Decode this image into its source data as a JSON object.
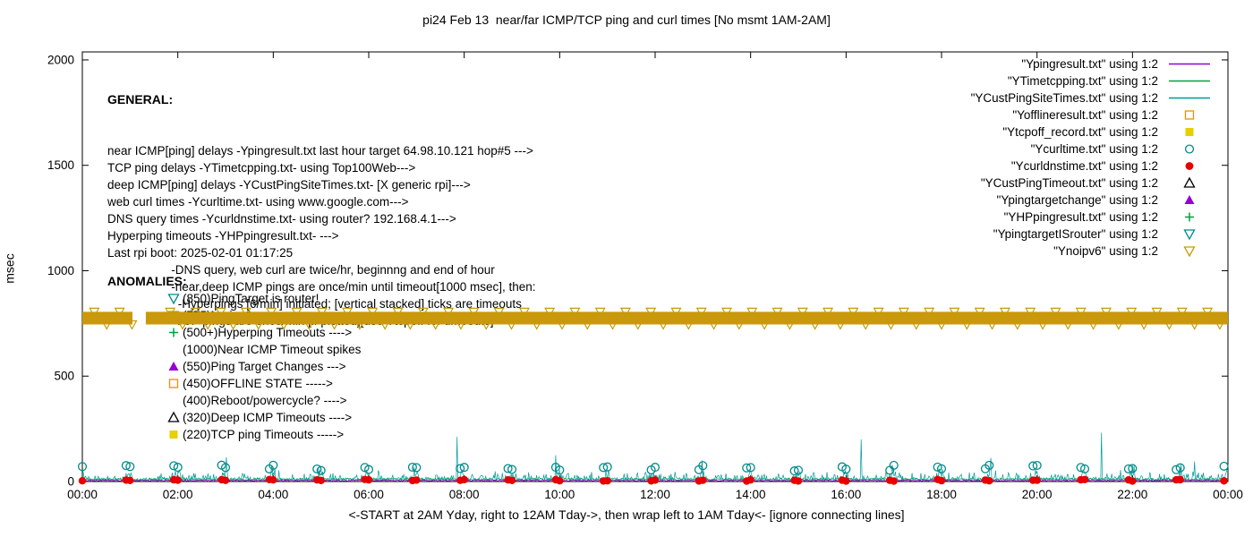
{
  "title": "pi24 Feb 13  near/far ICMP/TCP ping and curl times [No msmt 1AM-2AM]",
  "axes": {
    "ylabel": "msec",
    "xlabel": "<-START at 2AM Yday, right to 12AM Tday->, then wrap left to 1AM Tday<- [ignore connecting lines]",
    "yticks": [
      0,
      500,
      1000,
      1500,
      2000
    ],
    "xticks": [
      "00:00",
      "02:00",
      "04:00",
      "06:00",
      "08:00",
      "10:00",
      "12:00",
      "14:00",
      "16:00",
      "18:00",
      "20:00",
      "22:00",
      "00:00"
    ],
    "ylim": [
      0,
      2000
    ],
    "xlim_hours": [
      0,
      24
    ],
    "grid": false
  },
  "legend": [
    {
      "label": "\"Ypingresult.txt\" using 1:2",
      "marker": "line",
      "color": "#9400d3"
    },
    {
      "label": "\"YTimetcpping.txt\" using 1:2",
      "marker": "line",
      "color": "#00a040"
    },
    {
      "label": "\"YCustPingSiteTimes.txt\" using 1:2",
      "marker": "line",
      "color": "#009a9a"
    },
    {
      "label": "\"Yofflineresult.txt\" using 1:2",
      "marker": "square-open",
      "color": "#ef8e00"
    },
    {
      "label": "\"Ytcpoff_record.txt\" using 1:2",
      "marker": "square-filled",
      "color": "#e8cf00"
    },
    {
      "label": "\"Ycurltime.txt\" using 1:2",
      "marker": "circle-open",
      "color": "#008b8b"
    },
    {
      "label": "\"Ycurldnstime.txt\" using 1:2",
      "marker": "circle-filled",
      "color": "#e60000"
    },
    {
      "label": "\"YCustPingTimeout.txt\" using 1:2",
      "marker": "triangle-up-open",
      "color": "#000000"
    },
    {
      "label": "\"Ypingtargetchange\" using 1:2",
      "marker": "triangle-up-filled",
      "color": "#9400d3"
    },
    {
      "label": "\"YHPpingresult.txt\" using 1:2",
      "marker": "plus",
      "color": "#00a040"
    },
    {
      "label": "\"YpingtargetISrouter\" using 1:2",
      "marker": "triangle-down-open",
      "color": "#008b8b"
    },
    {
      "label": "\"Ynoipv6\" using 1:2",
      "marker": "triangle-down-open",
      "color": "#c9990b"
    }
  ],
  "general": {
    "heading": "GENERAL:",
    "lines": [
      "near ICMP[ping] delays -Ypingresult.txt last hour target 64.98.10.121 hop#5 --->",
      "TCP ping delays -YTimetcpping.txt- using Top100Web--->",
      "deep ICMP[ping] delays -YCustPingSiteTimes.txt- [X generic rpi]--->",
      "web curl times -Ycurltime.txt- using www.google.com--->",
      "DNS query times -Ycurldnstime.txt- using router? 192.168.4.1--->",
      "Hyperping timeouts -YHPpingresult.txt- --->",
      "Last rpi boot: 2025-02-01 01:17:25",
      "                   -DNS query, web curl are twice/hr, beginnng and end of hour",
      "                   -near,deep ICMP pings are once/min until timeout[1000 msec], then:",
      "                     -Hyperpings [6/min] initiated; [vertical stacked] ticks are timeouts",
      "                   -TCP pings are once/min [if plotted][use Ytcpoff for timeouts]"
    ]
  },
  "anomalies": {
    "heading": "ANOMALIES:",
    "items": [
      {
        "marker": "triangle-down-open",
        "color": "#008b8b",
        "text": "(850)PingTarget is router!"
      },
      {
        "marker": "triangle-down-open",
        "color": "#c9990b",
        "text": "(775)No ipv6 ---->"
      },
      {
        "marker": "plus",
        "color": "#00a040",
        "text": "(500+)Hyperping Timeouts ---->"
      },
      {
        "marker": null,
        "color": null,
        "text": "(1000)Near ICMP Timeout spikes"
      },
      {
        "marker": "triangle-up-filled",
        "color": "#9400d3",
        "text": "(550)Ping Target Changes --->"
      },
      {
        "marker": "square-open",
        "color": "#ef8e00",
        "text": "(450)OFFLINE STATE ----->"
      },
      {
        "marker": null,
        "color": null,
        "text": "(400)Reboot/powercycle? ---->"
      },
      {
        "marker": "triangle-up-open",
        "color": "#000000",
        "text": "(320)Deep ICMP Timeouts ---->"
      },
      {
        "marker": "square-filled",
        "color": "#e8cf00",
        "text": "(220)TCP ping Timeouts ----->"
      }
    ]
  },
  "chart_data": {
    "type": "line",
    "x_unit": "hours_00_to_24",
    "no_measurement_window": "01:00-02:00",
    "point_gap_hours": [
      1.05,
      1.9
    ],
    "noise": {
      "seed": 20250213,
      "burst_prob": 0.3,
      "burst_max": 28,
      "hourly_max": 45,
      "rare_prob": 0.02,
      "rare_max": 40,
      "gap_flat_msec": 8
    },
    "series": [
      {
        "name": "Ypingresult.txt",
        "role": "near_icmp_ping",
        "style": "line",
        "color": "#9400d3",
        "typical_msec": [
          2,
          8
        ]
      },
      {
        "name": "YTimetcpping.txt",
        "role": "tcp_ping",
        "style": "line",
        "color": "#00a040",
        "typical_msec": [
          5,
          15
        ]
      },
      {
        "name": "YCustPingSiteTimes.txt",
        "role": "deep_icmp_ping",
        "style": "line",
        "color": "#009a9a",
        "typical_msec": [
          4,
          90
        ],
        "spikes": [
          {
            "t": 3.02,
            "v": 115
          },
          {
            "t": 7.85,
            "v": 212
          },
          {
            "t": 9.92,
            "v": 125
          },
          {
            "t": 12.98,
            "v": 100
          },
          {
            "t": 16.32,
            "v": 200
          },
          {
            "t": 19.03,
            "v": 112
          },
          {
            "t": 21.35,
            "v": 232
          },
          {
            "t": 23.3,
            "v": 95
          }
        ]
      },
      {
        "name": "Ycurltime.txt",
        "role": "web_curl",
        "style": "circle-open",
        "color": "#008b8b",
        "typical_msec": [
          50,
          78
        ],
        "minutes_each_hour": [
          0,
          55
        ]
      },
      {
        "name": "Ycurldnstime.txt",
        "role": "dns_query",
        "style": "circle-filled",
        "color": "#e60000",
        "typical_msec": [
          2,
          10
        ],
        "minutes_each_hour": [
          0,
          55
        ]
      }
    ],
    "band": {
      "name": "Ynoipv6",
      "role": "no_ipv6_marker_band",
      "style": "triangle-down-open-stacked",
      "color": "#c9990b",
      "band_msec": [
        745,
        805
      ],
      "center_msec": 775,
      "gap_hours": [
        1.05,
        1.33
      ],
      "triangle_spacing_hours": 0.53
    }
  }
}
